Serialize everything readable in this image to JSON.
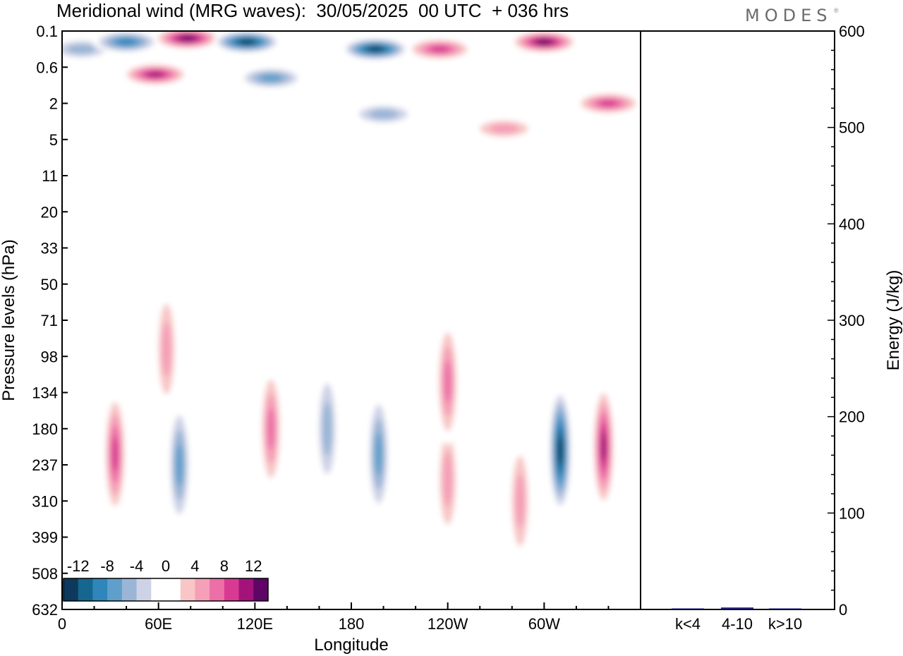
{
  "title": "Meridional wind (MRG waves):  30/05/2025  00 UTC  + 036 hrs",
  "brand": "MODES",
  "brand_mark": "®",
  "chart_data": [
    {
      "type": "heatmap",
      "title": "Meridional wind (MRG waves):  30/05/2025  00 UTC  + 036 hrs",
      "xlabel": "Longitude",
      "ylabel": "Pressure levels (hPa)",
      "x_ticks": [
        {
          "lon": 0,
          "label": "0"
        },
        {
          "lon": 60,
          "label": "60E"
        },
        {
          "lon": 120,
          "label": "120E"
        },
        {
          "lon": 180,
          "label": "180"
        },
        {
          "lon": 240,
          "label": "120W"
        },
        {
          "lon": 300,
          "label": "60W"
        }
      ],
      "xlim": [
        0,
        360
      ],
      "y_levels": [
        "0.1",
        "0.6",
        "2",
        "5",
        "11",
        "20",
        "33",
        "50",
        "71",
        "98",
        "134",
        "180",
        "237",
        "310",
        "399",
        "508",
        "632"
      ],
      "colorbar": {
        "labels": [
          "-12",
          "-8",
          "-4",
          "0",
          "4",
          "8",
          "12"
        ],
        "colors": [
          "#0d3a5c",
          "#15678f",
          "#2e86bb",
          "#5f9fcb",
          "#9ab5d6",
          "#cdd2e6",
          "#ffffff",
          "#ffffff",
          "#f8c6c6",
          "#f59fb8",
          "#ec6fa7",
          "#d83a93",
          "#a3137a",
          "#5e0566"
        ]
      },
      "features": [
        {
          "lon": 12,
          "level_index": 0.5,
          "value": -6
        },
        {
          "lon": 40,
          "level_index": 0.3,
          "value": -9
        },
        {
          "lon": 58,
          "level_index": 1.2,
          "value": 12
        },
        {
          "lon": 78,
          "level_index": 0.2,
          "value": 13
        },
        {
          "lon": 115,
          "level_index": 0.3,
          "value": -13
        },
        {
          "lon": 130,
          "level_index": 1.3,
          "value": -8
        },
        {
          "lon": 195,
          "level_index": 0.5,
          "value": -14
        },
        {
          "lon": 200,
          "level_index": 2.3,
          "value": -6
        },
        {
          "lon": 235,
          "level_index": 0.5,
          "value": 10
        },
        {
          "lon": 300,
          "level_index": 0.3,
          "value": 14
        },
        {
          "lon": 275,
          "level_index": 2.7,
          "value": 6
        },
        {
          "lon": 340,
          "level_index": 2.0,
          "value": 9
        },
        {
          "lon": 33,
          "level_index": 11.7,
          "value": 10
        },
        {
          "lon": 73,
          "level_index": 12.0,
          "value": -8
        },
        {
          "lon": 65,
          "level_index": 8.8,
          "value": 6
        },
        {
          "lon": 130,
          "level_index": 11.0,
          "value": 7
        },
        {
          "lon": 165,
          "level_index": 11.0,
          "value": -6
        },
        {
          "lon": 197,
          "level_index": 11.7,
          "value": -7
        },
        {
          "lon": 240,
          "level_index": 12.4,
          "value": 5
        },
        {
          "lon": 240,
          "level_index": 9.7,
          "value": 8
        },
        {
          "lon": 310,
          "level_index": 11.6,
          "value": -13
        },
        {
          "lon": 337,
          "level_index": 11.5,
          "value": 11
        },
        {
          "lon": 285,
          "level_index": 13.0,
          "value": 5
        }
      ]
    },
    {
      "type": "bar",
      "categories": [
        "k<4",
        "4-10",
        "k>10"
      ],
      "values": [
        0.5,
        2,
        0.5
      ],
      "ylabel": "Energy (J/kg)",
      "ylim": [
        0,
        600
      ],
      "y_ticks": [
        0,
        100,
        200,
        300,
        400,
        500,
        600
      ],
      "bar_color": "#1a1a6e"
    }
  ]
}
